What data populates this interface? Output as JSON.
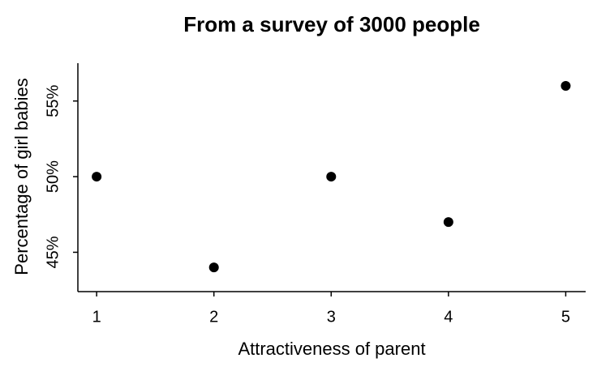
{
  "chart_data": {
    "type": "scatter",
    "title": "From a survey of 3000 people",
    "x_label": "Attractiveness of parent",
    "y_label": "Percentage of girl babies",
    "x": [
      1,
      2,
      3,
      4,
      5
    ],
    "values": [
      50,
      44,
      50,
      47,
      56
    ],
    "color": "#000000",
    "xlim": [
      0.84,
      5.17
    ],
    "xticks": [
      1,
      2,
      3,
      4,
      5
    ],
    "ylim": [
      42.4,
      57.5
    ],
    "yticks": [
      {
        "value": 45,
        "label": "45%"
      },
      {
        "value": 50,
        "label": "50%"
      },
      {
        "value": 55,
        "label": "55%"
      }
    ]
  }
}
